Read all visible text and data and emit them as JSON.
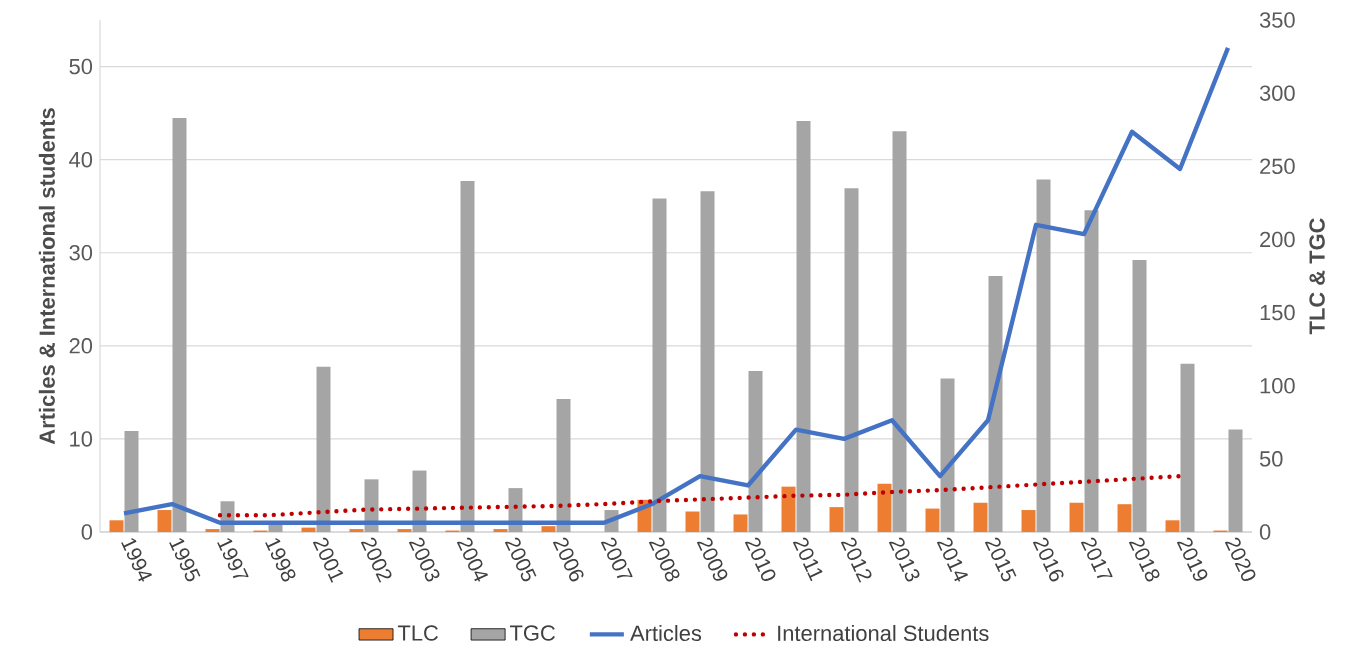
{
  "chart_data": {
    "type": "bar",
    "ylabel": "Articles & International students",
    "y2label": "TLC & TGC",
    "categories": [
      "1994",
      "1995",
      "1997",
      "1998",
      "2001",
      "2002",
      "2003",
      "2004",
      "2005",
      "2006",
      "2007",
      "2008",
      "2009",
      "2010",
      "2011",
      "2012",
      "2013",
      "2014",
      "2015",
      "2016",
      "2017",
      "2018",
      "2019",
      "2020"
    ],
    "series": [
      {
        "name": "TLC",
        "axis": "y2",
        "color": "#ed7d31",
        "values": [
          8,
          15,
          2,
          1,
          3,
          2,
          2,
          1,
          2,
          4,
          0,
          22,
          14,
          12,
          31,
          17,
          33,
          16,
          20,
          15,
          20,
          19,
          8,
          1
        ]
      },
      {
        "name": "TGC",
        "axis": "y2",
        "color": "#a5a5a5",
        "values": [
          69,
          283,
          21,
          5,
          113,
          36,
          42,
          240,
          30,
          91,
          15,
          228,
          233,
          110,
          281,
          235,
          274,
          105,
          175,
          241,
          220,
          186,
          115,
          70
        ]
      },
      {
        "name": "Articles",
        "type": "line",
        "color": "#4472c4",
        "line_style": "solid",
        "values": [
          2,
          3,
          1,
          1,
          1,
          1,
          1,
          1,
          1,
          1,
          1,
          3,
          6,
          5,
          11,
          10,
          12,
          6,
          12,
          33,
          32,
          43,
          39,
          52
        ]
      },
      {
        "name": "International Students",
        "type": "line",
        "color": "#c00000",
        "line_style": "dotted",
        "values": [
          null,
          null,
          1.8,
          1.8,
          2.1,
          2.4,
          2.5,
          2.6,
          2.7,
          2.8,
          3.0,
          3.3,
          3.5,
          3.7,
          3.9,
          4.0,
          4.3,
          4.5,
          4.8,
          5.1,
          5.4,
          5.7,
          6.0,
          null
        ]
      }
    ],
    "ylim": [
      0,
      55
    ],
    "yticks": [
      0,
      10,
      20,
      30,
      40,
      50
    ],
    "y2lim": [
      0,
      350
    ],
    "y2ticks": [
      0,
      50,
      100,
      150,
      200,
      250,
      300,
      350
    ],
    "grid": "y",
    "legend": "bottom",
    "marker": "none"
  }
}
